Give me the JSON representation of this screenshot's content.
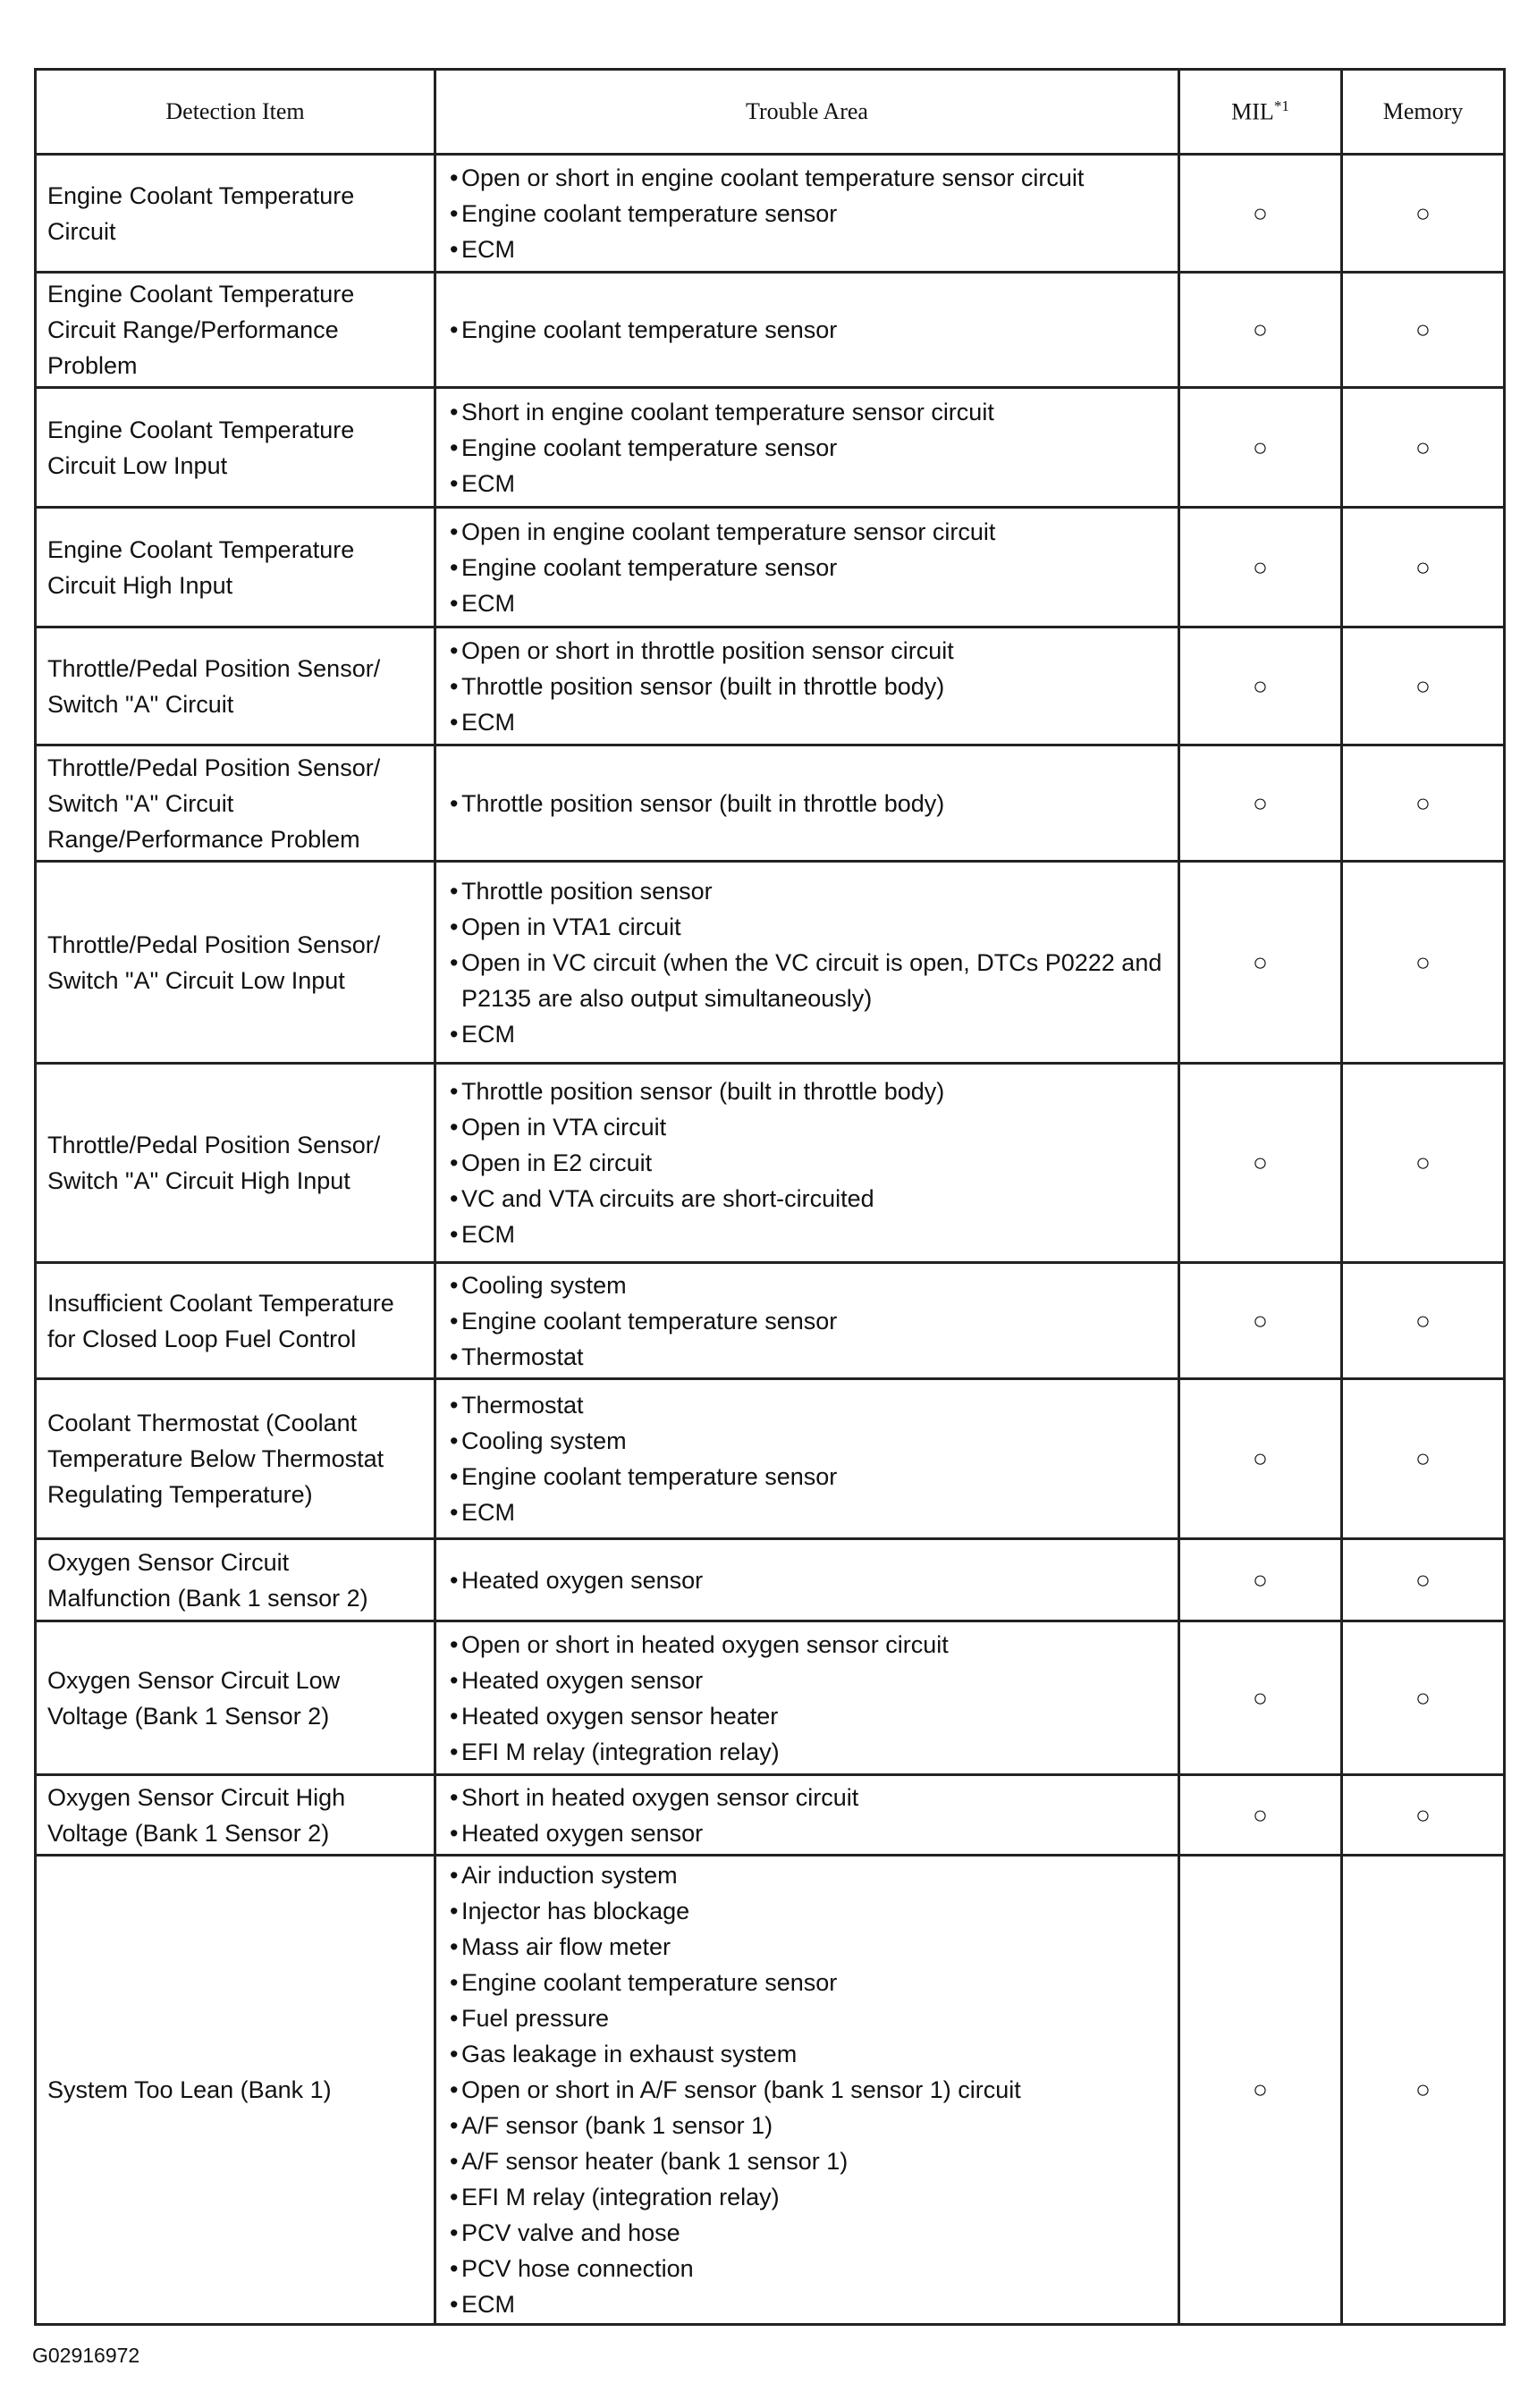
{
  "table": {
    "header": {
      "detection_item": "Detection Item",
      "trouble_area": "Trouble Area",
      "mil": "MIL",
      "mil_note": "*1",
      "memory": "Memory"
    },
    "rows": [
      {
        "detection_item": "Engine Coolant Temperature Circuit",
        "trouble_area": [
          "Open or short in engine coolant temperature sensor circuit",
          "Engine coolant temperature sensor",
          "ECM"
        ],
        "mil": "○",
        "memory": "○"
      },
      {
        "detection_item": "Engine Coolant Temperature Circuit Range/Performance Problem",
        "trouble_area": [
          "Engine coolant temperature sensor"
        ],
        "mil": "○",
        "memory": "○"
      },
      {
        "detection_item": "Engine Coolant Temperature Circuit Low Input",
        "trouble_area": [
          "Short in engine coolant temperature sensor circuit",
          "Engine coolant temperature sensor",
          "ECM"
        ],
        "mil": "○",
        "memory": "○"
      },
      {
        "detection_item": "Engine Coolant Temperature Circuit High Input",
        "trouble_area": [
          "Open in engine coolant temperature sensor circuit",
          "Engine coolant temperature sensor",
          "ECM"
        ],
        "mil": "○",
        "memory": "○"
      },
      {
        "detection_item": "Throttle/Pedal Position Sensor/ Switch \"A\" Circuit",
        "trouble_area": [
          "Open or short in throttle position sensor circuit",
          "Throttle position sensor (built in throttle body)",
          "ECM"
        ],
        "mil": "○",
        "memory": "○"
      },
      {
        "detection_item": "Throttle/Pedal Position Sensor/ Switch \"A\" Circuit Range/Performance Problem",
        "trouble_area": [
          "Throttle position sensor (built in throttle body)"
        ],
        "mil": "○",
        "memory": "○"
      },
      {
        "detection_item": "Throttle/Pedal Position Sensor/ Switch \"A\" Circuit Low Input",
        "trouble_area": [
          "Throttle position sensor",
          "Open in VTA1 circuit",
          "Open in VC circuit (when the VC circuit is open, DTCs P0222 and P2135 are also output simultaneously)",
          "ECM"
        ],
        "mil": "○",
        "memory": "○"
      },
      {
        "detection_item": "Throttle/Pedal Position Sensor/ Switch \"A\" Circuit High Input",
        "trouble_area": [
          "Throttle position sensor (built in throttle body)",
          "Open in VTA circuit",
          "Open in E2 circuit",
          "VC and VTA circuits are short-circuited",
          "ECM"
        ],
        "mil": "○",
        "memory": "○"
      },
      {
        "detection_item": "Insufficient Coolant Temperature for Closed Loop Fuel Control",
        "trouble_area": [
          "Cooling system",
          "Engine coolant temperature sensor",
          "Thermostat"
        ],
        "mil": "○",
        "memory": "○"
      },
      {
        "detection_item": "Coolant Thermostat (Coolant Temperature Below Thermostat Regulating Temperature)",
        "trouble_area": [
          "Thermostat",
          "Cooling system",
          "Engine coolant temperature sensor",
          "ECM"
        ],
        "mil": "○",
        "memory": "○"
      },
      {
        "detection_item": "Oxygen Sensor Circuit Malfunction (Bank 1 sensor 2)",
        "trouble_area": [
          "Heated oxygen sensor"
        ],
        "mil": "○",
        "memory": "○"
      },
      {
        "detection_item": "Oxygen Sensor Circuit Low Voltage (Bank 1 Sensor 2)",
        "trouble_area": [
          "Open or short in heated oxygen sensor circuit",
          "Heated oxygen sensor",
          "Heated oxygen sensor heater",
          "EFI M relay (integration relay)"
        ],
        "mil": "○",
        "memory": "○"
      },
      {
        "detection_item": "Oxygen Sensor Circuit High Voltage (Bank 1 Sensor 2)",
        "trouble_area": [
          "Short in heated oxygen sensor circuit",
          "Heated oxygen sensor"
        ],
        "mil": "○",
        "memory": "○"
      },
      {
        "detection_item": "System Too Lean (Bank 1)",
        "trouble_area": [
          "Air induction system",
          "Injector has blockage",
          "Mass air flow meter",
          "Engine coolant temperature sensor",
          "Fuel pressure",
          "Gas leakage in exhaust system",
          "Open or short in A/F sensor (bank 1 sensor 1) circuit",
          "A/F sensor (bank 1 sensor 1)",
          "A/F sensor heater (bank 1 sensor 1)",
          "EFI M relay (integration relay)",
          "PCV valve and hose",
          "PCV hose connection",
          "ECM"
        ],
        "mil": "○",
        "memory": "○"
      }
    ]
  },
  "footer": {
    "code": "G02916972"
  }
}
